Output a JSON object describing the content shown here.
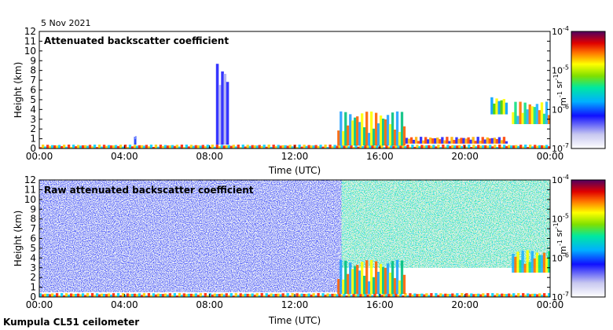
{
  "date_label": "5 Nov 2021",
  "footer_label": "Kumpula CL51 ceilometer",
  "chart_data": [
    {
      "type": "heatmap",
      "title": "Attenuated backscatter coefficient",
      "xlabel": "Time (UTC)",
      "ylabel": "Height (km)",
      "xticks": [
        "00:00",
        "04:00",
        "08:00",
        "12:00",
        "16:00",
        "20:00",
        "00:00"
      ],
      "yticks": [
        "0",
        "1",
        "2",
        "3",
        "4",
        "5",
        "6",
        "7",
        "8",
        "9",
        "10",
        "11",
        "12"
      ],
      "xlim_hours": [
        0,
        24
      ],
      "ylim_km": [
        0,
        12
      ],
      "colorbar": {
        "label": "m-1 sr-1",
        "ticks": [
          "10-7",
          "10-6",
          "10-5",
          "10-4"
        ],
        "scale": "log",
        "range": [
          1e-07,
          0.0001
        ]
      },
      "features": [
        {
          "name": "surface layer",
          "t_start": 0,
          "t_end": 24,
          "h_bottom": 0,
          "h_top": 0.4
        },
        {
          "name": "plume near 04:30",
          "t_start": 4.45,
          "t_end": 4.55,
          "h_bottom": 0.4,
          "h_top": 1.3
        },
        {
          "name": "vertical streaks near 08:30",
          "t_start": 8.3,
          "t_end": 8.9,
          "h_bottom": 0.4,
          "h_top": 9.2
        },
        {
          "name": "aerosol layer 14-17h",
          "t_start": 14,
          "t_end": 17.2,
          "h_bottom": 0.3,
          "h_top": 3.8
        },
        {
          "name": "boundary layer 17-22h",
          "t_start": 17.2,
          "t_end": 22,
          "h_bottom": 0.5,
          "h_top": 1.2
        },
        {
          "name": "cloud near 21:30",
          "t_start": 21.2,
          "t_end": 22,
          "h_bottom": 3.5,
          "h_top": 5.3
        },
        {
          "name": "cloud 22-24h",
          "t_start": 22.2,
          "t_end": 24,
          "h_bottom": 2.5,
          "h_top": 4.8
        }
      ]
    },
    {
      "type": "heatmap",
      "title": "Raw attenuated backscatter coefficient",
      "xlabel": "Time (UTC)",
      "ylabel": "Height (km)",
      "xticks": [
        "00:00",
        "04:00",
        "08:00",
        "12:00",
        "16:00",
        "20:00",
        "00:00"
      ],
      "yticks": [
        "0",
        "1",
        "2",
        "3",
        "4",
        "5",
        "6",
        "7",
        "8",
        "9",
        "10",
        "11",
        "12"
      ],
      "xlim_hours": [
        0,
        24
      ],
      "ylim_km": [
        0,
        12
      ],
      "colorbar": {
        "label": "m-1 sr-1",
        "ticks": [
          "10-7",
          "10-6",
          "10-5",
          "10-4"
        ],
        "scale": "log",
        "range": [
          1e-07,
          0.0001
        ]
      },
      "features": [
        {
          "name": "noise background",
          "t_start": 0,
          "t_end": 14.2,
          "h_bottom": 0.5,
          "h_top": 12
        },
        {
          "name": "daylight noise",
          "t_start": 14.2,
          "t_end": 24,
          "h_bottom": 3,
          "h_top": 12
        },
        {
          "name": "surface layer",
          "t_start": 0,
          "t_end": 24,
          "h_bottom": 0,
          "h_top": 0.4
        },
        {
          "name": "aerosol layer 14-17h",
          "t_start": 14,
          "t_end": 17.2,
          "h_bottom": 0.3,
          "h_top": 3.8
        },
        {
          "name": "cloud 22-24h",
          "t_start": 22.2,
          "t_end": 24,
          "h_bottom": 2.5,
          "h_top": 4.8
        }
      ]
    }
  ]
}
